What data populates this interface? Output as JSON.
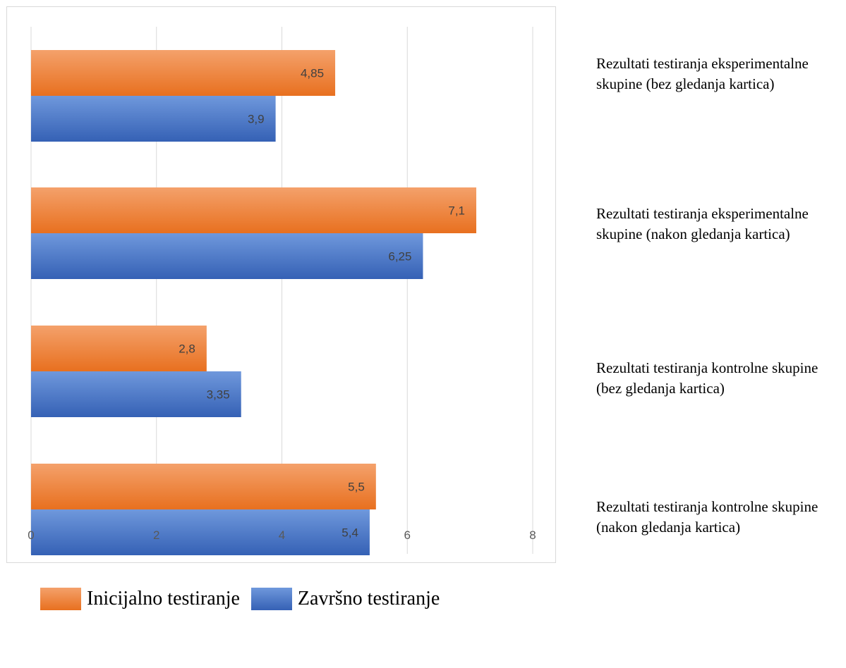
{
  "chart_data": {
    "type": "bar",
    "orientation": "horizontal",
    "categories": [
      "Rezultati testiranja eksperimentalne skupine (bez gledanja kartica)",
      "Rezultati testiranja eksperimentalne skupine (nakon gledanja kartica)",
      "Rezultati testiranja kontrolne skupine (bez gledanja kartica)",
      "Rezultati testiranja kontrolne skupine (nakon gledanja kartica)"
    ],
    "series": [
      {
        "name": "Inicijalno testiranje",
        "color": "#ed7d31",
        "values": [
          4.85,
          7.1,
          2.8,
          5.5
        ],
        "labels": [
          "4,85",
          "7,1",
          "2,8",
          "5,5"
        ]
      },
      {
        "name": "Završno testiranje",
        "color": "#4472c4",
        "values": [
          3.9,
          6.25,
          3.35,
          5.4
        ],
        "labels": [
          "3,9",
          "6,25",
          "3,35",
          "5,4"
        ]
      }
    ],
    "xlim": [
      0,
      8
    ],
    "xticks": [
      "0",
      "2",
      "4",
      "6",
      "8"
    ],
    "grid": true,
    "legend_position": "bottom-left"
  }
}
